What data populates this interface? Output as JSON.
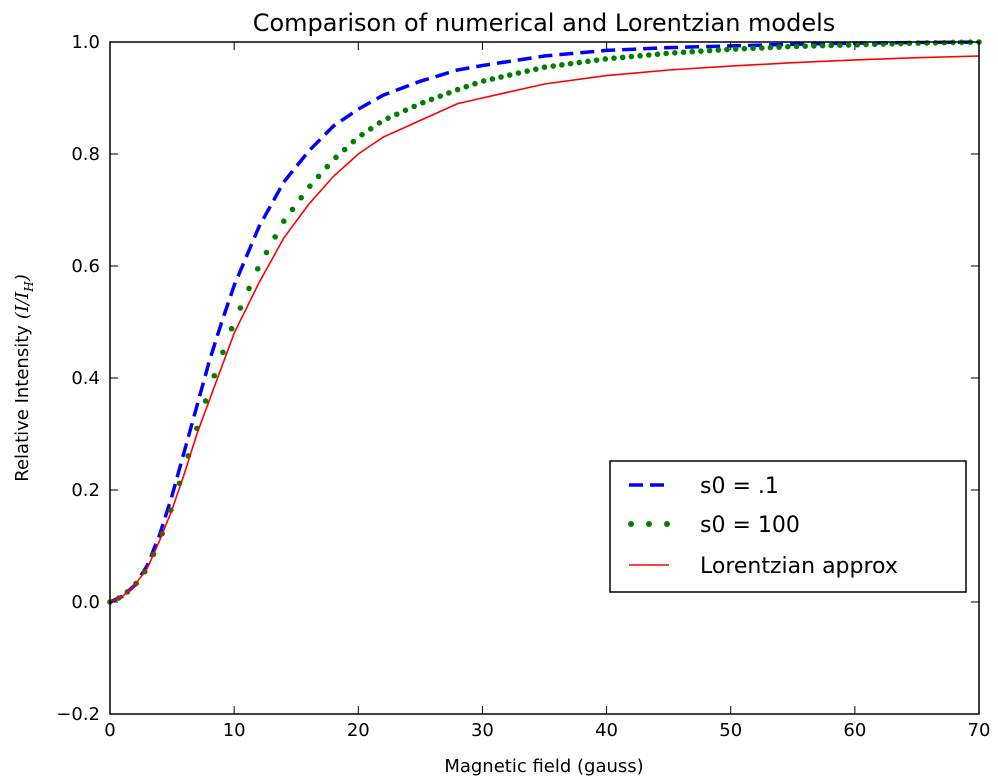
{
  "chart_data": {
    "type": "line",
    "title": "Comparison of numerical and Lorentzian models",
    "xlabel": "Magnetic field (gauss)",
    "ylabel": "Relative Intensity",
    "ylabel_math": "(I/I",
    "ylabel_math_sub": "H",
    "ylabel_math_close": ")",
    "xlim": [
      0,
      70
    ],
    "ylim": [
      -0.2,
      1.0
    ],
    "xticks": [
      "0",
      "10",
      "20",
      "30",
      "40",
      "50",
      "60",
      "70"
    ],
    "yticks": [
      "−0.2",
      "0.0",
      "0.2",
      "0.4",
      "0.6",
      "0.8",
      "1.0"
    ],
    "grid": false,
    "legend_position": "center-right",
    "series": [
      {
        "name": "s0 = .1",
        "style": "dashed",
        "color": "#0000ff",
        "x": [
          0,
          1,
          2,
          3,
          4,
          5,
          6,
          7,
          8,
          9,
          10,
          12,
          14,
          16,
          18,
          20,
          22,
          25,
          28,
          30,
          35,
          40,
          45,
          50,
          55,
          60,
          65,
          70
        ],
        "y": [
          0.0,
          0.01,
          0.03,
          0.065,
          0.12,
          0.19,
          0.27,
          0.35,
          0.43,
          0.5,
          0.565,
          0.67,
          0.75,
          0.805,
          0.85,
          0.88,
          0.905,
          0.93,
          0.95,
          0.958,
          0.975,
          0.985,
          0.99,
          0.993,
          0.996,
          0.998,
          0.999,
          1.0
        ]
      },
      {
        "name": "s0 = 100",
        "style": "dotted",
        "color": "#007f00",
        "x": [
          0,
          1,
          2,
          3,
          4,
          5,
          6,
          7,
          8,
          9,
          10,
          12,
          14,
          16,
          18,
          20,
          22,
          25,
          28,
          30,
          35,
          40,
          45,
          50,
          55,
          60,
          65,
          70
        ],
        "y": [
          0.0,
          0.01,
          0.03,
          0.06,
          0.11,
          0.17,
          0.24,
          0.31,
          0.38,
          0.44,
          0.5,
          0.6,
          0.68,
          0.74,
          0.79,
          0.83,
          0.86,
          0.89,
          0.915,
          0.93,
          0.955,
          0.97,
          0.98,
          0.987,
          0.992,
          0.995,
          0.998,
          1.0
        ]
      },
      {
        "name": "Lorentzian approx",
        "style": "solid",
        "color": "#ff0000",
        "x": [
          0,
          1,
          2,
          3,
          4,
          5,
          6,
          7,
          8,
          9,
          10,
          12,
          14,
          16,
          18,
          20,
          22,
          25,
          28,
          30,
          35,
          40,
          45,
          50,
          55,
          60,
          65,
          70
        ],
        "y": [
          0.0,
          0.01,
          0.03,
          0.06,
          0.11,
          0.165,
          0.23,
          0.3,
          0.36,
          0.42,
          0.48,
          0.57,
          0.65,
          0.71,
          0.76,
          0.8,
          0.83,
          0.86,
          0.89,
          0.9,
          0.925,
          0.94,
          0.95,
          0.957,
          0.963,
          0.968,
          0.972,
          0.975
        ]
      }
    ]
  }
}
